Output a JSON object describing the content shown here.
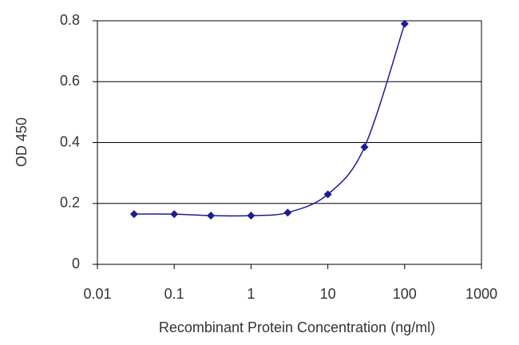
{
  "chart_data": {
    "type": "line",
    "xlabel": "Recombinant Protein Concentration (ng/ml)",
    "ylabel": "OD 450",
    "x": [
      0.03,
      0.1,
      0.3,
      1,
      3,
      10,
      30,
      100
    ],
    "series": [
      {
        "color": "#1c1c96",
        "values": [
          0.165,
          0.165,
          0.16,
          0.16,
          0.17,
          0.23,
          0.385,
          0.79
        ]
      }
    ],
    "xscale": "log",
    "xlim": [
      0.01,
      1000
    ],
    "xticks": [
      0.01,
      0.1,
      1,
      10,
      100,
      1000
    ],
    "ylim": [
      0,
      0.8
    ],
    "yticks": [
      0,
      0.2,
      0.4,
      0.6,
      0.8
    ],
    "grid": true
  }
}
